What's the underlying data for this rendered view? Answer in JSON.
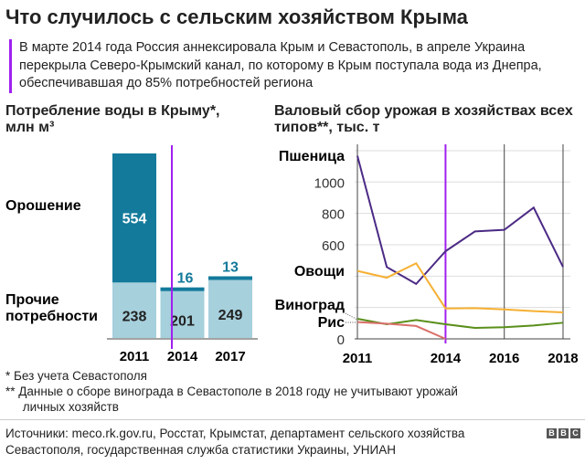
{
  "title": "Что случилось с сельским хозяйством Крыма",
  "subtitle": "В марте 2014 года Россия аннексировала Крым и Севастополь, в апреле Украина перекрыла Северо-Крымский канал, по которому в Крым поступала вода из Днепра, обеспечивавшая до 85% потребностей региона",
  "colors": {
    "annexation": "#a020f0",
    "irrigation": "#137a9b",
    "other": "#a6d0dc",
    "wheat": "#4b2a85",
    "vegetables": "#f6b032",
    "grapes": "#5a8f1b",
    "rice": "#d9706a"
  },
  "chart_data": [
    {
      "type": "bar",
      "stacked": true,
      "title": "Потребление воды в Крыму*,",
      "unit": "млн м³",
      "categories": [
        "2011",
        "2014",
        "2017"
      ],
      "series": [
        {
          "name": "Прочие потребности",
          "values": [
            238,
            201,
            249
          ]
        },
        {
          "name": "Орошение",
          "values": [
            554,
            16,
            13
          ]
        }
      ],
      "marker_year": "2014"
    },
    {
      "type": "line",
      "title": "Валовый сбор урожая в хозяйствах всех типов**, тыс. т",
      "x": [
        2011,
        2012,
        2013,
        2014,
        2015,
        2016,
        2017,
        2018
      ],
      "xticks": [
        "2011",
        "2014",
        "2016",
        "2018"
      ],
      "yticks": [
        "0",
        "600",
        "800",
        "1000"
      ],
      "ylim": [
        0,
        1200
      ],
      "series": [
        {
          "name": "Пшеница",
          "values": [
            1167,
            458,
            350,
            559,
            685,
            695,
            837,
            458
          ]
        },
        {
          "name": "Овощи",
          "values": [
            433,
            390,
            482,
            194,
            196,
            188,
            177,
            169
          ]
        },
        {
          "name": "Виноград",
          "values": [
            128,
            93,
            120,
            93,
            70,
            74,
            85,
            103
          ]
        },
        {
          "name": "Рис",
          "values": [
            107,
            97,
            82,
            0,
            null,
            null,
            null,
            null
          ]
        }
      ],
      "marker_year": 2014
    }
  ],
  "footnotes": [
    "*  Без учета Севастополя",
    "** Данные о сборе винограда в Севастополе в 2018 году не учитывают урожай",
    "     личных хозяйств"
  ],
  "sources": "Источники: meco.rk.gov.ru, Росстат, Крымстат, департамент сельского хозяйства Севастополя, государственная служба статистики Украины, УНИАН",
  "logo": "BBC"
}
